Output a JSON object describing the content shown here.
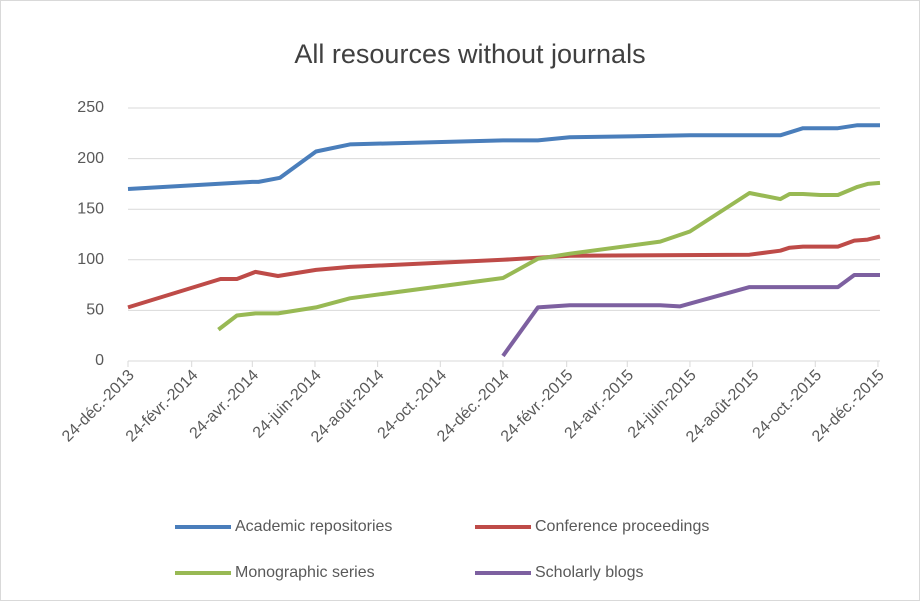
{
  "chart_data": {
    "type": "line",
    "title": "All resources without journals",
    "xlim": [
      "2013-12-24",
      "2015-12-26"
    ],
    "xticks": [
      {
        "value": "2013-12-24",
        "label": "24-déc.-2013"
      },
      {
        "value": "2014-02-24",
        "label": "24-févr.-2014"
      },
      {
        "value": "2014-04-24",
        "label": "24-avr.-2014"
      },
      {
        "value": "2014-06-24",
        "label": "24-juin-2014"
      },
      {
        "value": "2014-08-24",
        "label": "24-août-2014"
      },
      {
        "value": "2014-10-24",
        "label": "24-oct.-2014"
      },
      {
        "value": "2014-12-24",
        "label": "24-déc.-2014"
      },
      {
        "value": "2015-02-24",
        "label": "24-févr.-2015"
      },
      {
        "value": "2015-04-24",
        "label": "24-avr.-2015"
      },
      {
        "value": "2015-06-24",
        "label": "24-juin-2015"
      },
      {
        "value": "2015-08-24",
        "label": "24-août-2015"
      },
      {
        "value": "2015-10-24",
        "label": "24-oct.-2015"
      },
      {
        "value": "2015-12-24",
        "label": "24-déc.-2015"
      }
    ],
    "ylim": [
      0,
      250
    ],
    "yticks": [
      0,
      50,
      100,
      150,
      200,
      250
    ],
    "grid": true,
    "legend": "bottom",
    "series": [
      {
        "name": "Academic repositories",
        "color": "#4a7ebb",
        "x": [
          "2013-12-24",
          "2014-04-24",
          "2014-04-30",
          "2014-05-21",
          "2014-06-25",
          "2014-07-28",
          "2014-12-24",
          "2015-01-27",
          "2015-02-27",
          "2015-06-24",
          "2015-09-20",
          "2015-10-12",
          "2015-11-15",
          "2015-12-04",
          "2015-12-26"
        ],
        "values": [
          170,
          177,
          177,
          181,
          207,
          214,
          218,
          218,
          221,
          223,
          223,
          230,
          230,
          233,
          233
        ]
      },
      {
        "name": "Conference proceedings",
        "color": "#be4b48",
        "x": [
          "2013-12-24",
          "2014-03-24",
          "2014-04-09",
          "2014-04-27",
          "2014-05-19",
          "2014-06-25",
          "2014-07-28",
          "2014-12-24",
          "2015-02-27",
          "2015-08-21",
          "2015-09-20",
          "2015-09-29",
          "2015-10-12",
          "2015-11-15",
          "2015-12-01",
          "2015-12-14",
          "2015-12-26"
        ],
        "values": [
          53,
          81,
          81,
          88,
          84,
          90,
          93,
          100,
          104,
          105,
          109,
          112,
          113,
          113,
          119,
          120,
          123
        ]
      },
      {
        "name": "Monographic series",
        "color": "#98b954",
        "x": [
          "2014-03-22",
          "2014-04-09",
          "2014-04-27",
          "2014-05-19",
          "2014-06-25",
          "2014-07-28",
          "2014-12-24",
          "2015-01-27",
          "2015-02-27",
          "2015-05-26",
          "2015-06-24",
          "2015-08-21",
          "2015-09-20",
          "2015-09-29",
          "2015-10-12",
          "2015-10-29",
          "2015-11-15",
          "2015-12-04",
          "2015-12-14",
          "2015-12-26"
        ],
        "values": [
          31,
          45,
          47,
          47,
          53,
          62,
          82,
          101,
          106,
          118,
          128,
          166,
          160,
          165,
          165,
          164,
          164,
          172,
          175,
          176
        ]
      },
      {
        "name": "Scholarly blogs",
        "color": "#7d60a0",
        "x": [
          "2014-12-24",
          "2015-01-27",
          "2015-02-27",
          "2015-05-26",
          "2015-06-14",
          "2015-08-21",
          "2015-11-15",
          "2015-12-01",
          "2015-12-26"
        ],
        "values": [
          5,
          53,
          55,
          55,
          54,
          73,
          73,
          85,
          85
        ]
      }
    ]
  }
}
